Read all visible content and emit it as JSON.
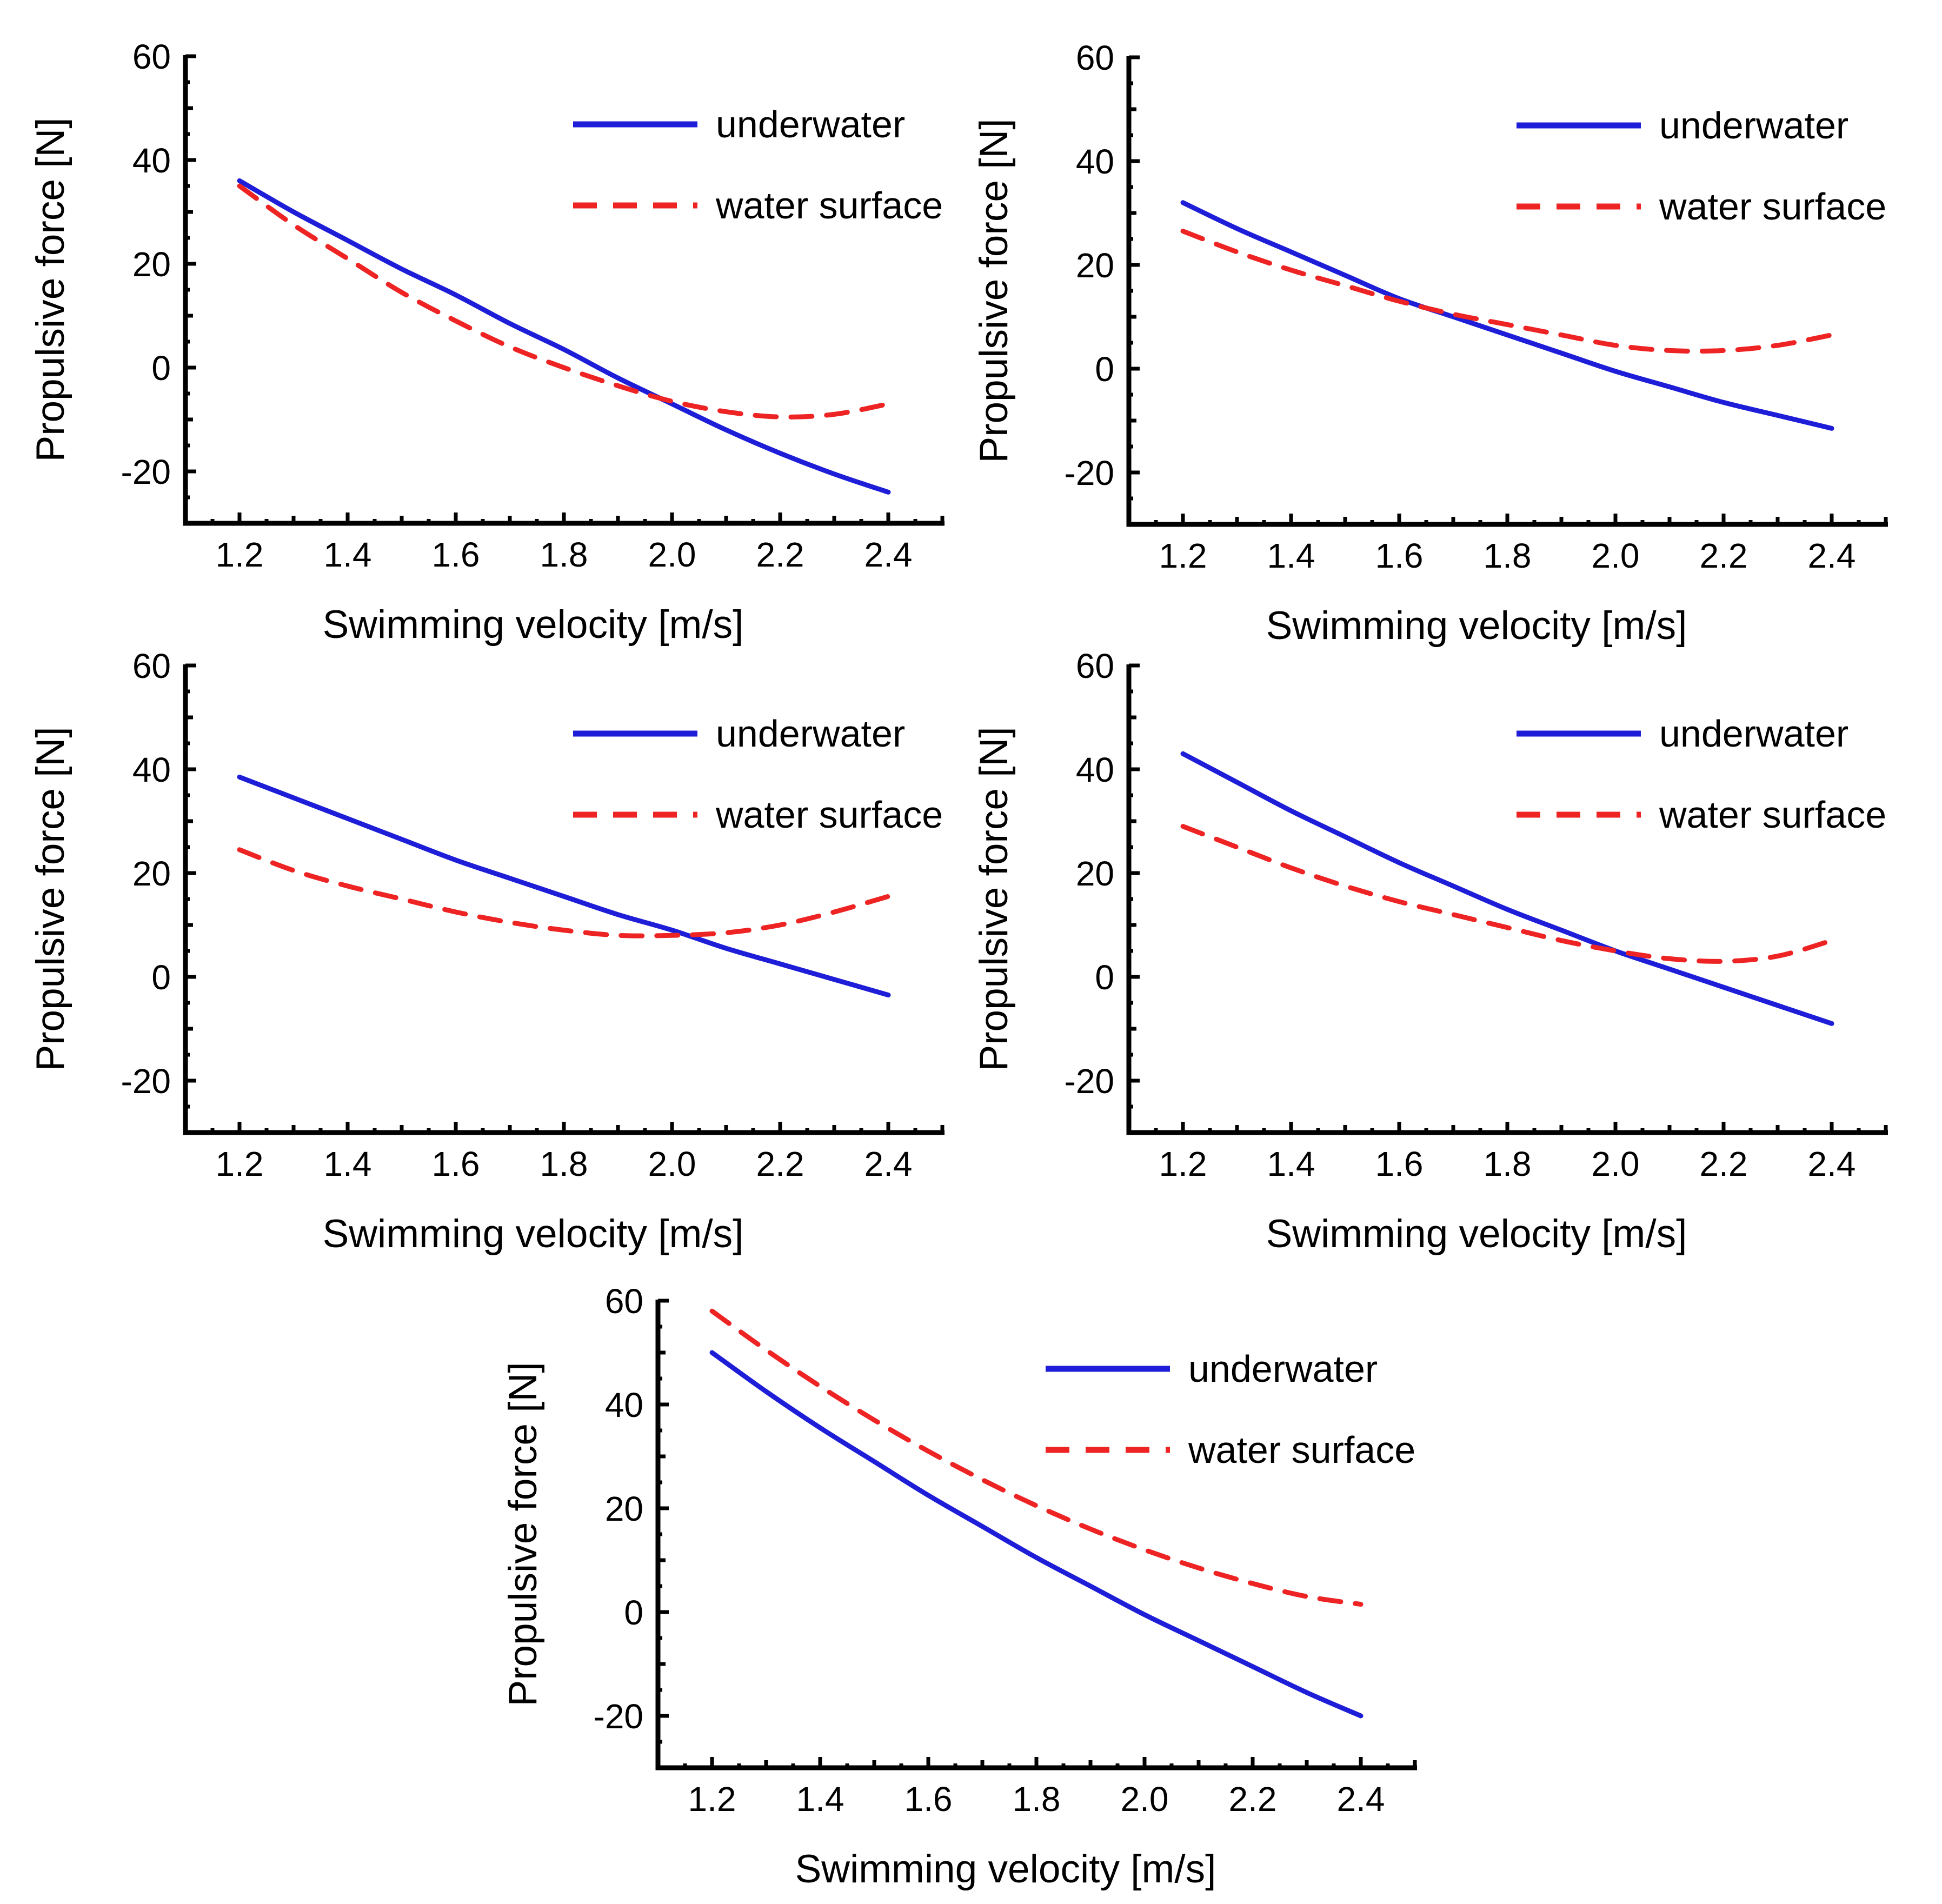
{
  "figure": {
    "description": "Five line-chart panels comparing propulsive force vs swimming velocity underwater and at the water surface",
    "background": "#ffffff",
    "text_color": "#000000"
  },
  "chart_data": [
    {
      "panel": "top-left",
      "type": "line",
      "title": "",
      "xlabel": "Swimming velocity [m/s]",
      "ylabel": "Propulsive force [N]",
      "xlim": [
        1.1,
        2.5
      ],
      "ylim": [
        -30,
        60
      ],
      "x_major_ticks": [
        1.2,
        1.4,
        1.6,
        1.8,
        2.0,
        2.2,
        2.4
      ],
      "y_major_ticks": [
        60,
        40,
        20,
        0,
        -20
      ],
      "grid": false,
      "legend_position": "top-right",
      "x": [
        1.2,
        1.3,
        1.4,
        1.5,
        1.6,
        1.7,
        1.8,
        1.9,
        2.0,
        2.1,
        2.2,
        2.3,
        2.4
      ],
      "series": [
        {
          "name": "underwater",
          "color": "#1e1ed8",
          "style": "solid",
          "values": [
            36,
            30,
            24.5,
            19,
            14,
            8.5,
            3.5,
            -2,
            -7,
            -12,
            -16.5,
            -20.5,
            -24
          ]
        },
        {
          "name": "water surface",
          "color": "#ee2424",
          "style": "dashed",
          "values": [
            35,
            27.5,
            21,
            14.5,
            9,
            4,
            0,
            -3.5,
            -6.5,
            -8.5,
            -9.5,
            -9,
            -7
          ]
        }
      ]
    },
    {
      "panel": "top-right",
      "type": "line",
      "title": "",
      "xlabel": "Swimming velocity [m/s]",
      "ylabel": "Propulsive force [N]",
      "xlim": [
        1.1,
        2.5
      ],
      "ylim": [
        -30,
        60
      ],
      "x_major_ticks": [
        1.2,
        1.4,
        1.6,
        1.8,
        2.0,
        2.2,
        2.4
      ],
      "y_major_ticks": [
        60,
        40,
        20,
        0,
        -20
      ],
      "grid": false,
      "legend_position": "top-right",
      "x": [
        1.2,
        1.3,
        1.4,
        1.5,
        1.6,
        1.7,
        1.8,
        1.9,
        2.0,
        2.1,
        2.2,
        2.3,
        2.4
      ],
      "series": [
        {
          "name": "underwater",
          "color": "#1e1ed8",
          "style": "solid",
          "values": [
            32,
            27,
            22.5,
            18,
            13.5,
            10,
            6.5,
            3,
            -0.5,
            -3.5,
            -6.5,
            -9,
            -11.5
          ]
        },
        {
          "name": "water surface",
          "color": "#ee2424",
          "style": "dashed",
          "values": [
            26.5,
            22.5,
            19,
            16,
            13,
            10.5,
            8.5,
            6.5,
            4.5,
            3.5,
            3.5,
            4.5,
            6.5
          ]
        }
      ]
    },
    {
      "panel": "middle-left",
      "type": "line",
      "title": "",
      "xlabel": "Swimming velocity [m/s]",
      "ylabel": "Propulsive force [N]",
      "xlim": [
        1.1,
        2.5
      ],
      "ylim": [
        -30,
        60
      ],
      "x_major_ticks": [
        1.2,
        1.4,
        1.6,
        1.8,
        2.0,
        2.2,
        2.4
      ],
      "y_major_ticks": [
        60,
        40,
        20,
        0,
        -20
      ],
      "grid": false,
      "legend_position": "top-right",
      "x": [
        1.2,
        1.3,
        1.4,
        1.5,
        1.6,
        1.7,
        1.8,
        1.9,
        2.0,
        2.1,
        2.2,
        2.3,
        2.4
      ],
      "series": [
        {
          "name": "underwater",
          "color": "#1e1ed8",
          "style": "solid",
          "values": [
            38.5,
            34.5,
            30.5,
            26.5,
            22.5,
            19,
            15.5,
            12,
            9,
            5.5,
            2.5,
            -0.5,
            -3.5
          ]
        },
        {
          "name": "water surface",
          "color": "#ee2424",
          "style": "dashed",
          "values": [
            24.5,
            20.5,
            17.5,
            15,
            12.5,
            10.5,
            9,
            8,
            8,
            8.5,
            10,
            12.5,
            15.5
          ]
        }
      ]
    },
    {
      "panel": "middle-right",
      "type": "line",
      "title": "",
      "xlabel": "Swimming velocity [m/s]",
      "ylabel": "Propulsive force [N]",
      "xlim": [
        1.1,
        2.5
      ],
      "ylim": [
        -30,
        60
      ],
      "x_major_ticks": [
        1.2,
        1.4,
        1.6,
        1.8,
        2.0,
        2.2,
        2.4
      ],
      "y_major_ticks": [
        60,
        40,
        20,
        0,
        -20
      ],
      "grid": false,
      "legend_position": "top-right",
      "x": [
        1.2,
        1.3,
        1.4,
        1.5,
        1.6,
        1.7,
        1.8,
        1.9,
        2.0,
        2.1,
        2.2,
        2.3,
        2.4
      ],
      "series": [
        {
          "name": "underwater",
          "color": "#1e1ed8",
          "style": "solid",
          "values": [
            43,
            37.5,
            32,
            27,
            22,
            17.5,
            13,
            9,
            5,
            1.5,
            -2,
            -5.5,
            -9
          ]
        },
        {
          "name": "water surface",
          "color": "#ee2424",
          "style": "dashed",
          "values": [
            29,
            25,
            21,
            17.5,
            14.5,
            12,
            9.5,
            7,
            5,
            3.5,
            3,
            4,
            7
          ]
        }
      ]
    },
    {
      "panel": "bottom-center",
      "type": "line",
      "title": "",
      "xlabel": "Swimming velocity [m/s]",
      "ylabel": "Propulsive force [N]",
      "xlim": [
        1.1,
        2.5
      ],
      "ylim": [
        -30,
        60
      ],
      "x_major_ticks": [
        1.2,
        1.4,
        1.6,
        1.8,
        2.0,
        2.2,
        2.4
      ],
      "y_major_ticks": [
        60,
        40,
        20,
        0,
        -20
      ],
      "grid": false,
      "legend_position": "top-right",
      "x": [
        1.2,
        1.3,
        1.4,
        1.5,
        1.6,
        1.7,
        1.8,
        1.9,
        2.0,
        2.1,
        2.2,
        2.3,
        2.4
      ],
      "series": [
        {
          "name": "underwater",
          "color": "#1e1ed8",
          "style": "solid",
          "values": [
            50,
            42.5,
            35.5,
            29,
            22.5,
            16.5,
            10.5,
            5,
            -0.5,
            -5.5,
            -10.5,
            -15.5,
            -20
          ]
        },
        {
          "name": "water surface",
          "color": "#ee2424",
          "style": "dashed",
          "values": [
            58,
            50.5,
            43.5,
            37,
            31,
            25.5,
            20.5,
            16,
            12,
            8.5,
            5.5,
            3,
            1.5
          ]
        }
      ]
    }
  ]
}
